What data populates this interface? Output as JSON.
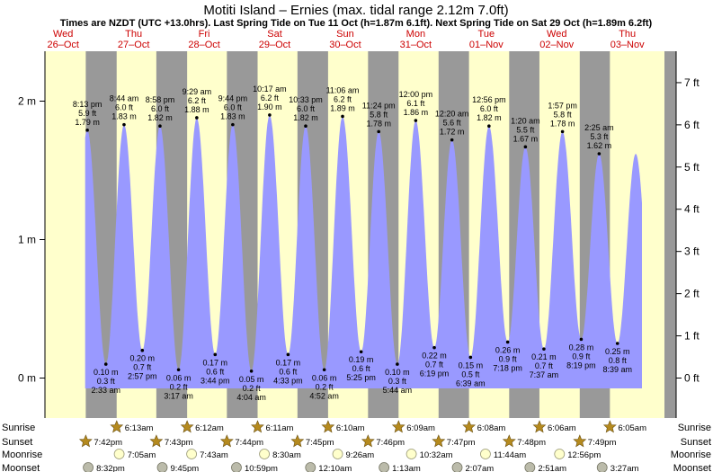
{
  "header": {
    "title": "Motiti Island – Ernies (max. tidal range 2.12m 7.0ft)",
    "subtitle": "Times are NZDT (UTC +13.0hrs). Last Spring Tide on Tue 11 Oct (h=1.87m 6.1ft). Next Spring Tide on Sat 29 Oct (h=1.89m 6.2ft)"
  },
  "days": [
    {
      "name": "Wed",
      "date": "26–Oct"
    },
    {
      "name": "Thu",
      "date": "27–Oct"
    },
    {
      "name": "Fri",
      "date": "28–Oct"
    },
    {
      "name": "Sat",
      "date": "29–Oct"
    },
    {
      "name": "Sun",
      "date": "30–Oct"
    },
    {
      "name": "Mon",
      "date": "31–Oct"
    },
    {
      "name": "Tue",
      "date": "01–Nov"
    },
    {
      "name": "Wed",
      "date": "02–Nov"
    },
    {
      "name": "Thu",
      "date": "03–Nov"
    }
  ],
  "chart_data": {
    "type": "area",
    "title": "Motiti Island – Ernies (max. tidal range 2.12m 7.0ft)",
    "ylabel": "",
    "ylim_m": [
      -0.25,
      2.3
    ],
    "y_ticks_left": [
      "0 m",
      "1 m",
      "2 m"
    ],
    "y_ticks_right": [
      "0 ft",
      "1 ft",
      "2 ft",
      "3 ft",
      "4 ft",
      "5 ft",
      "6 ft",
      "7 ft"
    ],
    "grid": false,
    "colors": {
      "water": "#9999ff",
      "day": "#ffffcc",
      "night": "#999999",
      "offscale": "#999999",
      "sun_star": "#b58a1e",
      "moon_rise": "#ffffcc",
      "moon_set": "#bbbbaa"
    },
    "tides": [
      {
        "time": "2:33 am",
        "m": "0.10 m",
        "ft": "0.3 ft",
        "height": 0.1,
        "type": "low",
        "hour": 26.55
      },
      {
        "time": "8:13 pm",
        "m": "1.79 m",
        "ft": "5.9 ft",
        "height": 1.79,
        "type": "high",
        "hour": 20.22
      },
      {
        "time": "8:44 am",
        "m": "1.83 m",
        "ft": "6.0 ft",
        "height": 1.83,
        "type": "high",
        "hour": 32.73
      },
      {
        "time": "2:57 pm",
        "m": "0.20 m",
        "ft": "0.7 ft",
        "height": 0.2,
        "type": "low",
        "hour": 38.95
      },
      {
        "time": "8:58 pm",
        "m": "1.82 m",
        "ft": "6.0 ft",
        "height": 1.82,
        "type": "high",
        "hour": 44.97
      },
      {
        "time": "3:17 am",
        "m": "0.06 m",
        "ft": "0.2 ft",
        "height": 0.06,
        "type": "low",
        "hour": 51.28
      },
      {
        "time": "9:29 am",
        "m": "1.88 m",
        "ft": "6.2 ft",
        "height": 1.88,
        "type": "high",
        "hour": 57.48
      },
      {
        "time": "3:44 pm",
        "m": "0.17 m",
        "ft": "0.6 ft",
        "height": 0.17,
        "type": "low",
        "hour": 63.73
      },
      {
        "time": "9:44 pm",
        "m": "1.83 m",
        "ft": "6.0 ft",
        "height": 1.83,
        "type": "high",
        "hour": 69.73
      },
      {
        "time": "4:04 am",
        "m": "0.05 m",
        "ft": "0.2 ft",
        "height": 0.05,
        "type": "low",
        "hour": 76.07
      },
      {
        "time": "10:17 am",
        "m": "1.90 m",
        "ft": "6.2 ft",
        "height": 1.9,
        "type": "high",
        "hour": 82.28
      },
      {
        "time": "4:33 pm",
        "m": "0.17 m",
        "ft": "0.6 ft",
        "height": 0.17,
        "type": "low",
        "hour": 88.55
      },
      {
        "time": "10:33 pm",
        "m": "1.82 m",
        "ft": "6.0 ft",
        "height": 1.82,
        "type": "high",
        "hour": 94.55
      },
      {
        "time": "4:52 am",
        "m": "0.06 m",
        "ft": "0.2 ft",
        "height": 0.06,
        "type": "low",
        "hour": 100.87
      },
      {
        "time": "11:06 am",
        "m": "1.89 m",
        "ft": "6.2 ft",
        "height": 1.89,
        "type": "high",
        "hour": 107.1
      },
      {
        "time": "5:25 pm",
        "m": "0.19 m",
        "ft": "0.6 ft",
        "height": 0.19,
        "type": "low",
        "hour": 113.42
      },
      {
        "time": "11:24 pm",
        "m": "1.78 m",
        "ft": "5.8 ft",
        "height": 1.78,
        "type": "high",
        "hour": 119.4
      },
      {
        "time": "5:44 am",
        "m": "0.10 m",
        "ft": "0.3 ft",
        "height": 0.1,
        "type": "low",
        "hour": 125.73
      },
      {
        "time": "12:00 pm",
        "m": "1.86 m",
        "ft": "6.1 ft",
        "height": 1.86,
        "type": "high",
        "hour": 132.0
      },
      {
        "time": "6:19 pm",
        "m": "0.22 m",
        "ft": "0.7 ft",
        "height": 0.22,
        "type": "low",
        "hour": 138.32
      },
      {
        "time": "12:20 am",
        "m": "1.72 m",
        "ft": "5.6 ft",
        "height": 1.72,
        "type": "high",
        "hour": 144.33
      },
      {
        "time": "6:39 am",
        "m": "0.15 m",
        "ft": "0.5 ft",
        "height": 0.15,
        "type": "low",
        "hour": 150.65
      },
      {
        "time": "12:56 pm",
        "m": "1.82 m",
        "ft": "6.0 ft",
        "height": 1.82,
        "type": "high",
        "hour": 156.93
      },
      {
        "time": "7:18 pm",
        "m": "0.26 m",
        "ft": "0.9 ft",
        "height": 0.26,
        "type": "low",
        "hour": 163.3
      },
      {
        "time": "1:20 am",
        "m": "1.67 m",
        "ft": "5.5 ft",
        "height": 1.67,
        "type": "high",
        "hour": 169.33
      },
      {
        "time": "7:37 am",
        "m": "0.21 m",
        "ft": "0.7 ft",
        "height": 0.21,
        "type": "low",
        "hour": 175.62
      },
      {
        "time": "1:57 pm",
        "m": "1.78 m",
        "ft": "5.8 ft",
        "height": 1.78,
        "type": "high",
        "hour": 181.95
      },
      {
        "time": "8:19 pm",
        "m": "0.28 m",
        "ft": "0.9 ft",
        "height": 0.28,
        "type": "low",
        "hour": 188.32
      },
      {
        "time": "2:25 am",
        "m": "1.62 m",
        "ft": "5.3 ft",
        "height": 1.62,
        "type": "high",
        "hour": 194.42
      },
      {
        "time": "8:39 am",
        "m": "0.25 m",
        "ft": "0.8 ft",
        "height": 0.25,
        "type": "low",
        "hour": 200.65
      }
    ],
    "sunrise": [
      {
        "label": "6:13am",
        "hour": 30.22
      },
      {
        "label": "6:12am",
        "hour": 54.2
      },
      {
        "label": "6:11am",
        "hour": 78.18
      },
      {
        "label": "6:10am",
        "hour": 102.17
      },
      {
        "label": "6:09am",
        "hour": 126.15
      },
      {
        "label": "6:08am",
        "hour": 150.13
      },
      {
        "label": "6:06am",
        "hour": 174.1
      },
      {
        "label": "6:05am",
        "hour": 198.08
      }
    ],
    "sunset": [
      {
        "label": "7:42pm",
        "hour": 19.7
      },
      {
        "label": "7:43pm",
        "hour": 43.72
      },
      {
        "label": "7:44pm",
        "hour": 67.73
      },
      {
        "label": "7:45pm",
        "hour": 91.75
      },
      {
        "label": "7:46pm",
        "hour": 115.77
      },
      {
        "label": "7:47pm",
        "hour": 139.78
      },
      {
        "label": "7:48pm",
        "hour": 163.8
      },
      {
        "label": "7:49pm",
        "hour": 187.82
      }
    ],
    "moonrise": [
      {
        "label": "7:05am",
        "hour": 31.08
      },
      {
        "label": "7:43am",
        "hour": 55.72
      },
      {
        "label": "8:30am",
        "hour": 80.5
      },
      {
        "label": "9:26am",
        "hour": 105.43
      },
      {
        "label": "10:32am",
        "hour": 130.53
      },
      {
        "label": "11:44am",
        "hour": 155.73
      },
      {
        "label": "12:56pm",
        "hour": 180.93
      }
    ],
    "moonset": [
      {
        "label": "8:32pm",
        "hour": 20.53
      },
      {
        "label": "9:45pm",
        "hour": 45.75
      },
      {
        "label": "10:59pm",
        "hour": 70.98
      },
      {
        "label": "12:10am",
        "hour": 96.17
      },
      {
        "label": "1:13am",
        "hour": 121.22
      },
      {
        "label": "2:07am",
        "hour": 146.12
      },
      {
        "label": "2:51am",
        "hour": 170.85
      },
      {
        "label": "3:27am",
        "hour": 195.45
      }
    ],
    "row_labels": {
      "sunrise": "Sunrise",
      "sunset": "Sunset",
      "moonrise": "Moonrise",
      "moonset": "Moonset"
    }
  }
}
